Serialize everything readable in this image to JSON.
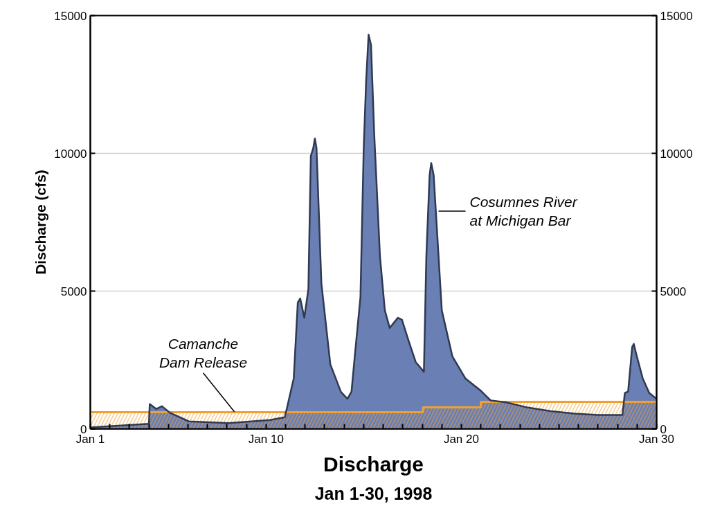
{
  "chart_data": {
    "type": "area",
    "title": "Discharge",
    "subtitle": "Jan 1-30, 1998",
    "ylabel": "Discharge (cfs)",
    "xlim": [
      "1998-01-01",
      "1998-01-30"
    ],
    "xticks": [
      {
        "value": "1998-01-01",
        "label": "Jan 1"
      },
      {
        "value": "1998-01-02",
        "label": null
      },
      {
        "value": "1998-01-03",
        "label": null
      },
      {
        "value": "1998-01-04",
        "label": null
      },
      {
        "value": "1998-01-05",
        "label": null
      },
      {
        "value": "1998-01-06",
        "label": null
      },
      {
        "value": "1998-01-07",
        "label": null
      },
      {
        "value": "1998-01-08",
        "label": null
      },
      {
        "value": "1998-01-09",
        "label": null
      },
      {
        "value": "1998-01-10",
        "label": "Jan 10"
      },
      {
        "value": "1998-01-11",
        "label": null
      },
      {
        "value": "1998-01-12",
        "label": null
      },
      {
        "value": "1998-01-13",
        "label": null
      },
      {
        "value": "1998-01-14",
        "label": null
      },
      {
        "value": "1998-01-15",
        "label": null
      },
      {
        "value": "1998-01-16",
        "label": null
      },
      {
        "value": "1998-01-17",
        "label": null
      },
      {
        "value": "1998-01-18",
        "label": null
      },
      {
        "value": "1998-01-19",
        "label": null
      },
      {
        "value": "1998-01-20",
        "label": "Jan 20"
      },
      {
        "value": "1998-01-21",
        "label": null
      },
      {
        "value": "1998-01-22",
        "label": null
      },
      {
        "value": "1998-01-23",
        "label": null
      },
      {
        "value": "1998-01-24",
        "label": null
      },
      {
        "value": "1998-01-25",
        "label": null
      },
      {
        "value": "1998-01-26",
        "label": null
      },
      {
        "value": "1998-01-27",
        "label": null
      },
      {
        "value": "1998-01-28",
        "label": null
      },
      {
        "value": "1998-01-29",
        "label": null
      },
      {
        "value": "1998-01-30",
        "label": "Jan 30"
      }
    ],
    "ylim": [
      0,
      15000
    ],
    "yticks": [
      0,
      5000,
      10000,
      15000
    ],
    "y2lim": [
      0,
      15000
    ],
    "y2ticks": [
      0,
      5000,
      10000,
      15000
    ],
    "grid": "y",
    "series": [
      {
        "color": "#6a7fb3",
        "x": [
          "1998-01-01T00:00",
          "1998-01-04T00:00",
          "1998-01-04T01:00",
          "1998-01-04T09:00",
          "1998-01-04T16:00",
          "1998-01-05T02:00",
          "1998-01-06T01:00",
          "1998-01-08T02:00",
          "1998-01-10T05:00",
          "1998-01-10T23:00",
          "1998-01-11T02:00",
          "1998-01-11T10:00",
          "1998-01-11T15:00",
          "1998-01-11T18:00",
          "1998-01-11T23:00",
          "1998-01-12T04:00",
          "1998-01-12T07:00",
          "1998-01-12T10:00",
          "1998-01-12T12:00",
          "1998-01-12T14:00",
          "1998-01-12T20:00",
          "1998-01-13T07:00",
          "1998-01-13T20:00",
          "1998-01-14T04:00",
          "1998-01-14T09:00",
          "1998-01-14T13:00",
          "1998-01-14T20:00",
          "1998-01-15T00:00",
          "1998-01-15T03:00",
          "1998-01-15T06:00",
          "1998-01-15T09:00",
          "1998-01-15T13:00",
          "1998-01-15T20:00",
          "1998-01-16T02:00",
          "1998-01-16T08:00",
          "1998-01-16T18:00",
          "1998-01-16T23:00",
          "1998-01-17T07:00",
          "1998-01-17T16:00",
          "1998-01-18T02:00",
          "1998-01-18T05:00",
          "1998-01-18T09:00",
          "1998-01-18T11:00",
          "1998-01-18T14:00",
          "1998-01-18T18:00",
          "1998-01-19T00:00",
          "1998-01-19T13:00",
          "1998-01-20T05:00",
          "1998-01-21T00:00",
          "1998-01-21T12:00",
          "1998-01-22T07:00",
          "1998-01-23T10:00",
          "1998-01-24T14:00",
          "1998-01-25T19:00",
          "1998-01-27T00:00",
          "1998-01-28T06:00",
          "1998-01-28T09:00",
          "1998-01-28T13:00",
          "1998-01-28T18:00",
          "1998-01-28T20:00",
          "1998-01-28T23:00",
          "1998-01-29T07:00",
          "1998-01-29T15:00",
          "1998-01-30T00:00"
        ],
        "values": [
          50,
          180,
          900,
          720,
          820,
          580,
          270,
          210,
          320,
          420,
          800,
          1830,
          4590,
          4730,
          4030,
          5070,
          9900,
          10190,
          10540,
          10190,
          5280,
          2340,
          1340,
          1090,
          1350,
          2630,
          4780,
          10190,
          12640,
          14310,
          13940,
          10670,
          6260,
          4300,
          3660,
          4030,
          3960,
          3210,
          2420,
          2070,
          6260,
          9210,
          9650,
          9210,
          7250,
          4300,
          2630,
          1830,
          1380,
          1030,
          960,
          770,
          640,
          550,
          500,
          500,
          1300,
          1350,
          2970,
          3080,
          2710,
          1830,
          1300,
          1090
        ]
      },
      {
        "type": "area",
        "color": "#f0a030",
        "x": [
          "1998-01-01T00:00",
          "1998-01-18T01:00",
          "1998-01-18T01:00",
          "1998-01-21T00:00",
          "1998-01-21T00:00",
          "1998-01-30T00:00"
        ],
        "values": [
          600,
          600,
          780,
          780,
          980,
          980
        ]
      }
    ],
    "annotations": [
      {
        "text": "Cosumnes River\nat Michigan Bar",
        "x": "1998-01-18T20:00",
        "y": 7900
      },
      {
        "text": "Camanche\nDam Release",
        "x": "1998-01-08T09:00",
        "y": 620
      }
    ]
  }
}
